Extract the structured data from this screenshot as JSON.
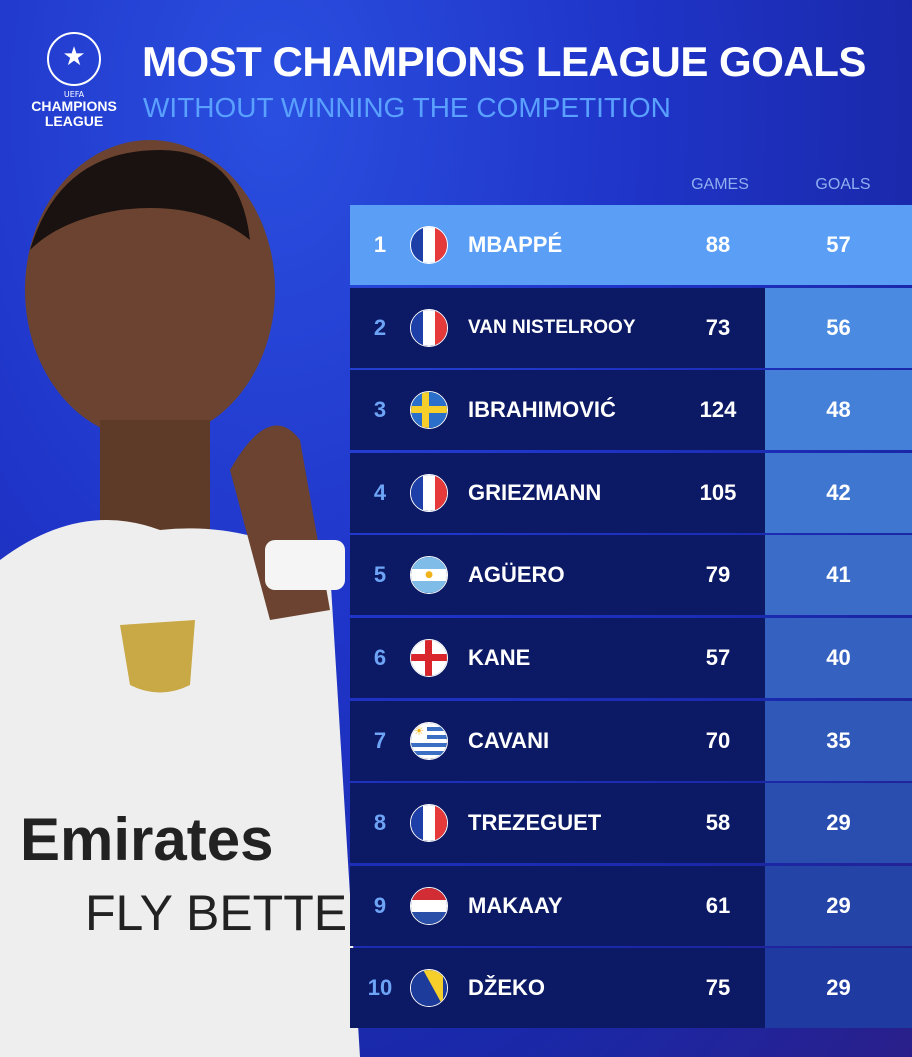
{
  "header": {
    "logo": {
      "uefa": "UEFA",
      "text_line1": "CHAMPIONS",
      "text_line2": "LEAGUE"
    },
    "title": "MOST CHAMPIONS LEAGUE GOALS",
    "subtitle": "WITHOUT WINNING THE COMPETITION"
  },
  "colors": {
    "highlight_row": "#5b9ef5",
    "dark_row": "#0c1a66",
    "subtitle": "#5aa0ff",
    "goals_top": "#4a8ae0",
    "goals_bottom": "#1f3aa0"
  },
  "chart_data": {
    "type": "table",
    "title": "MOST CHAMPIONS LEAGUE GOALS",
    "subtitle": "WITHOUT WINNING THE COMPETITION",
    "columns": [
      "",
      "",
      "",
      "GAMES",
      "GOALS"
    ],
    "rows": [
      {
        "rank": "1",
        "flag": "france",
        "name": "MBAPPÉ",
        "games": "88",
        "goals": "57"
      },
      {
        "rank": "2",
        "flag": "france",
        "name": "VAN NISTELROOY",
        "games": "73",
        "goals": "56"
      },
      {
        "rank": "3",
        "flag": "sweden",
        "name": "IBRAHIMOVIĆ",
        "games": "124",
        "goals": "48"
      },
      {
        "rank": "4",
        "flag": "france",
        "name": "GRIEZMANN",
        "games": "105",
        "goals": "42"
      },
      {
        "rank": "5",
        "flag": "argentina",
        "name": "AGÜERO",
        "games": "79",
        "goals": "41"
      },
      {
        "rank": "6",
        "flag": "england",
        "name": "KANE",
        "games": "57",
        "goals": "40"
      },
      {
        "rank": "7",
        "flag": "uruguay",
        "name": "CAVANI",
        "games": "70",
        "goals": "35"
      },
      {
        "rank": "8",
        "flag": "france",
        "name": "TREZEGUET",
        "games": "58",
        "goals": "29"
      },
      {
        "rank": "9",
        "flag": "netherlands",
        "name": "MAKAAY",
        "games": "61",
        "goals": "29"
      },
      {
        "rank": "10",
        "flag": "bosnia",
        "name": "DŽEKO",
        "games": "75",
        "goals": "29"
      }
    ]
  }
}
